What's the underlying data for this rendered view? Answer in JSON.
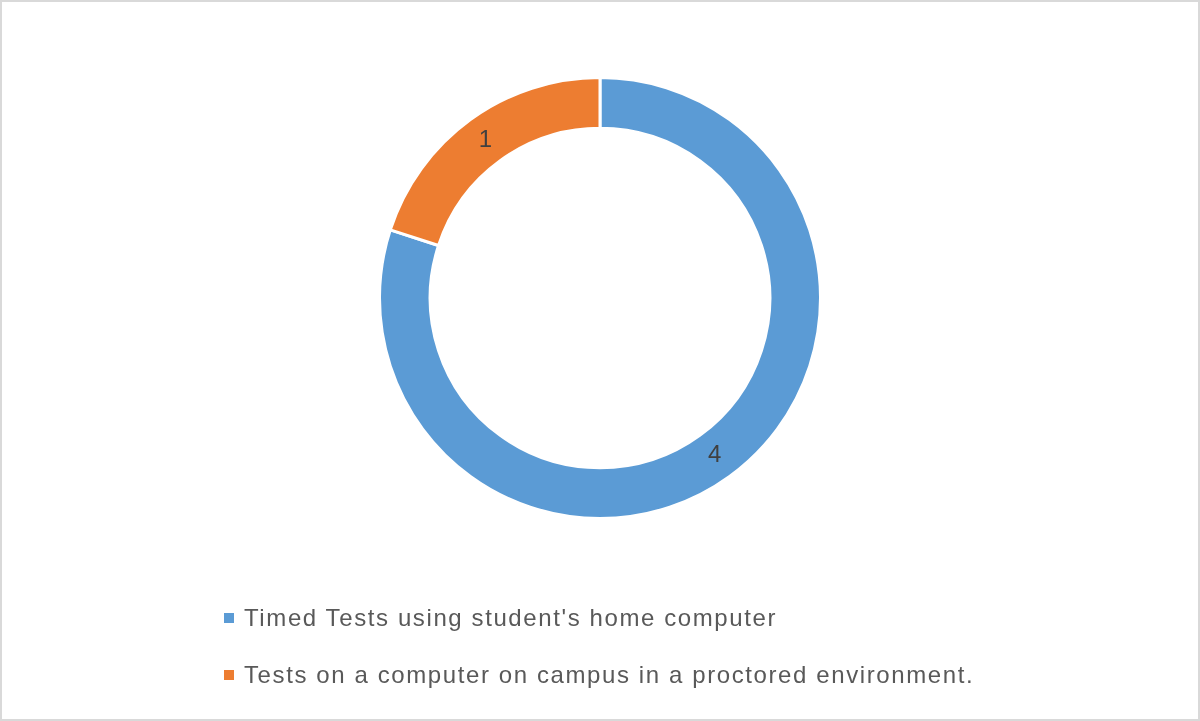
{
  "chart_data": {
    "type": "donut",
    "categories": [
      "Timed Tests using student's home computer",
      "Tests on a computer on campus in a proctored environment."
    ],
    "values": [
      4,
      1
    ],
    "colors": [
      "#5b9bd5",
      "#ed7d31"
    ],
    "data_labels": true,
    "legend": "bottom"
  }
}
